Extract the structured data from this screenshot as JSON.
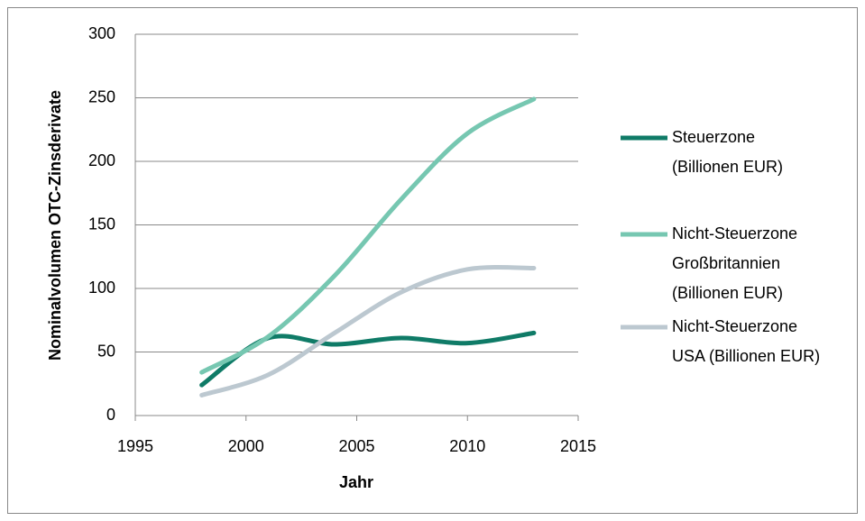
{
  "chart_data": {
    "type": "line",
    "xlabel": "Jahr",
    "ylabel": "Nominalvolumen OTC-Zinsderivate",
    "x": [
      1998,
      2001,
      2004,
      2007,
      2010,
      2013
    ],
    "series": [
      {
        "name": "Steuerzone\n(Billionen EUR)",
        "color": "#0f7b67",
        "values": [
          24,
          61,
          56,
          61,
          57,
          65
        ]
      },
      {
        "name": "Nicht-Steuerzone\nGroßbritannien\n(Billionen EUR)",
        "color": "#76c7b1",
        "values": [
          34,
          62,
          110,
          170,
          222,
          249
        ]
      },
      {
        "name": "Nicht-Steuerzone\nUSA (Billionen EUR)",
        "color": "#bcc8d0",
        "values": [
          16,
          32,
          65,
          97,
          115,
          116
        ]
      }
    ],
    "xlim": [
      1995,
      2015
    ],
    "xticks": [
      1995,
      2000,
      2005,
      2010,
      2015
    ],
    "ylim": [
      0,
      300
    ],
    "yticks": [
      0,
      50,
      100,
      150,
      200,
      250,
      300
    ],
    "grid": true,
    "legend": "right"
  }
}
